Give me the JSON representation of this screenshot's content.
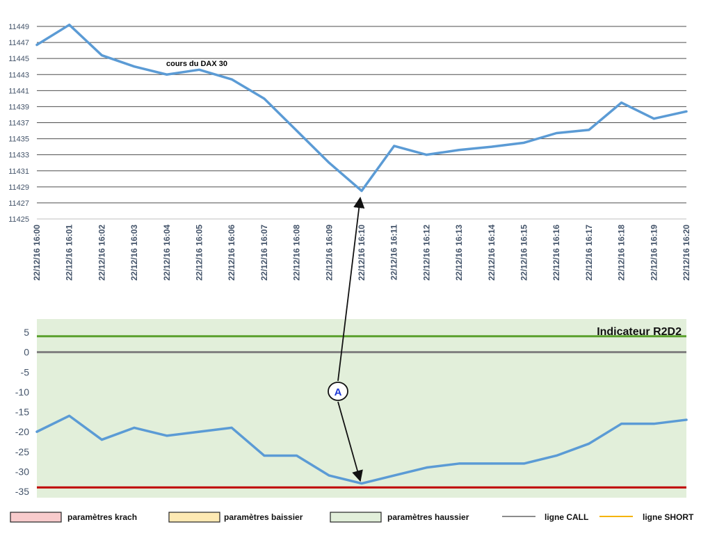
{
  "chart_data": [
    {
      "type": "line",
      "title": "",
      "annotation": "cours du DAX 30",
      "xlabel": "",
      "ylabel": "",
      "ylim": [
        11425,
        11450
      ],
      "yticks": [
        11425,
        11427,
        11429,
        11431,
        11433,
        11435,
        11437,
        11439,
        11441,
        11443,
        11445,
        11447,
        11449
      ],
      "categories": [
        "22/12/16 16:00",
        "22/12/16 16:01",
        "22/12/16 16:02",
        "22/12/16 16:03",
        "22/12/16 16:04",
        "22/12/16 16:05",
        "22/12/16 16:06",
        "22/12/16 16:07",
        "22/12/16 16:08",
        "22/12/16 16:09",
        "22/12/16 16:10",
        "22/12/16 16:11",
        "22/12/16 16:12",
        "22/12/16 16:13",
        "22/12/16 16:14",
        "22/12/16 16:15",
        "22/12/16 16:16",
        "22/12/16 16:17",
        "22/12/16 16:18",
        "22/12/16 16:19",
        "22/12/16 16:20"
      ],
      "series": [
        {
          "values": [
            11446.7,
            11449.2,
            11445.4,
            11444.0,
            11443.0,
            11443.6,
            11442.4,
            11440.0,
            11436.0,
            11432.0,
            11428.5,
            11434.1,
            11433.0,
            11433.6,
            11434.0,
            11434.5,
            11435.7,
            11436.1,
            11439.5,
            11437.5,
            11438.4
          ],
          "color": "#5b9bd5"
        }
      ],
      "grid": true
    },
    {
      "type": "line",
      "title": "Indicateur R2D2",
      "xlabel": "",
      "ylabel": "",
      "ylim": [
        -35,
        7
      ],
      "yticks": [
        5,
        0,
        -5,
        -10,
        -15,
        -20,
        -25,
        -30,
        -35
      ],
      "background": "#e2efda",
      "series": [
        {
          "values": [
            -20,
            -16,
            -22,
            -19,
            -21,
            -20,
            -19,
            -26,
            -26,
            -31,
            -33,
            -31,
            -29,
            -28,
            -28,
            -28,
            -26,
            -23,
            -18,
            -18,
            -17
          ],
          "color": "#5b9bd5"
        }
      ],
      "reference_lines": [
        {
          "value": 4,
          "color": "#5aa02c"
        },
        {
          "value": 0,
          "color": "#7f7f7f"
        },
        {
          "value": -34,
          "color": "#c00000"
        }
      ],
      "grid": false
    }
  ],
  "annotation_marker": {
    "label": "A",
    "color": "#1f3ad6"
  },
  "legend": [
    {
      "label": "paramètres krach",
      "swatch": "#f8cbcc",
      "kind": "box"
    },
    {
      "label": "paramètres baissier",
      "swatch": "#fde9b3",
      "kind": "box"
    },
    {
      "label": "paramètres haussier",
      "swatch": "#e2efda",
      "kind": "box"
    },
    {
      "label": "ligne CALL",
      "swatch": "#8c8c8c",
      "kind": "line"
    },
    {
      "label": "ligne SHORT",
      "swatch": "#f5b400",
      "kind": "line"
    }
  ]
}
